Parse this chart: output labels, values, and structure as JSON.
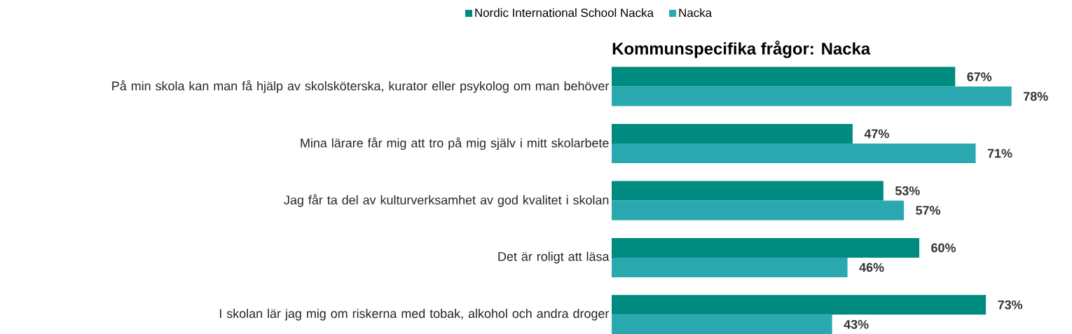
{
  "chart_data": {
    "type": "bar",
    "orientation": "horizontal",
    "title": "Kommunspecifika frågor: Nacka",
    "categories": [
      "På min skola kan man få hjälp av skolsköterska, kurator eller psykolog om man behöver",
      "Mina lärare får mig att tro på mig själv i mitt skolarbete",
      "Jag får ta del av kulturverksamhet av god kvalitet i skolan",
      "Det är roligt att läsa",
      "I skolan lär jag mig om riskerna med tobak, alkohol och andra droger"
    ],
    "series": [
      {
        "name": "Nordic International School Nacka",
        "color": "#008b80",
        "values": [
          67,
          47,
          53,
          60,
          73
        ],
        "value_labels": [
          "67%",
          "47%",
          "53%",
          "60%",
          "73%"
        ]
      },
      {
        "name": "Nacka",
        "color": "#2aa8b0",
        "values": [
          78,
          71,
          57,
          46,
          43
        ],
        "value_labels": [
          "78%",
          "71%",
          "57%",
          "46%",
          "43%"
        ]
      }
    ],
    "tick_labels": "y",
    "legend": "top"
  }
}
